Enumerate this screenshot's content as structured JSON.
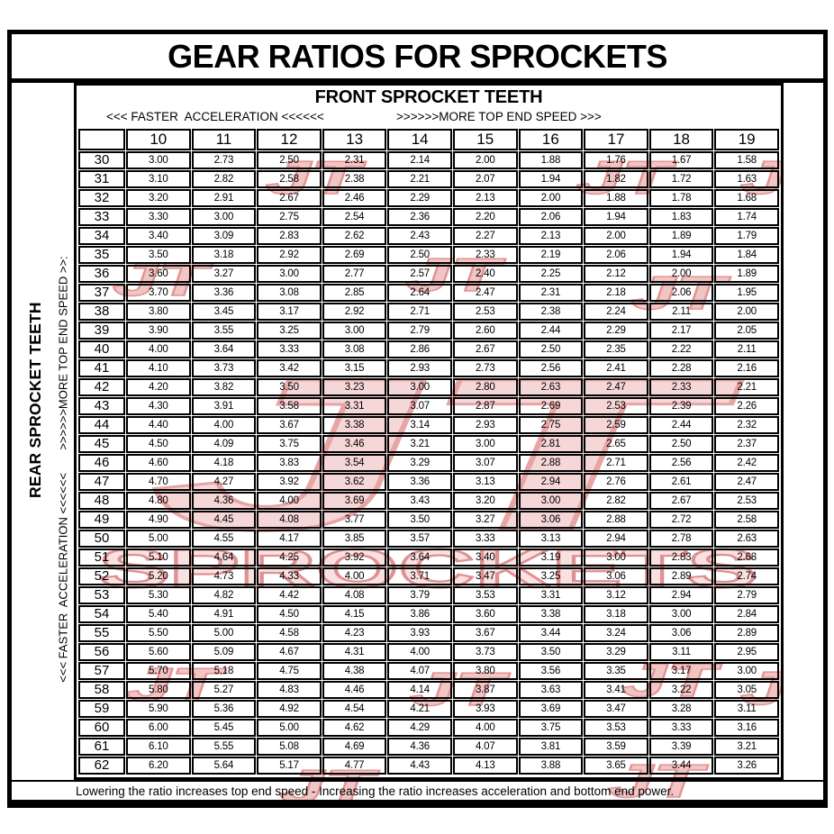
{
  "title": "GEAR RATIOS FOR SPROCKETS",
  "header": {
    "column_group": "FRONT SPROCKET TEETH",
    "acceleration": "<<< FASTER  ACCELERATION <<<<<<",
    "top_speed": ">>>>>>MORE TOP END SPEED >>>"
  },
  "side": {
    "row_group": "REAR SPROCKET TEETH",
    "direction": "<<< FASTER  ACCELERATION <<<<<<       >>>>>>MORE TOP END SPEED >>:"
  },
  "footer": {
    "note": "Lowering the ratio increases top end speed - Increasing the ratio increases acceleration and bottom end power."
  },
  "watermark": {
    "monogram": "JT",
    "wordmark": "SPROCKETS",
    "big_fill": "#f6d3d3",
    "big_stroke": "#e59c9c",
    "word_fill": "#f9dede",
    "word_stroke": "#dd8484",
    "small_fill": "#f1bfbf",
    "small_stroke": "#df8888"
  },
  "chart_data": {
    "type": "table",
    "title": "GEAR RATIOS FOR SPROCKETS",
    "x_label": "FRONT SPROCKET TEETH",
    "y_label": "REAR SPROCKET TEETH",
    "front_teeth": [
      "10",
      "11",
      "12",
      "13",
      "14",
      "15",
      "16",
      "17",
      "18",
      "19"
    ],
    "rows": [
      {
        "rear": "30",
        "ratios": [
          "3.00",
          "2.73",
          "2.50",
          "2.31",
          "2.14",
          "2.00",
          "1.88",
          "1.76",
          "1.67",
          "1.58"
        ]
      },
      {
        "rear": "31",
        "ratios": [
          "3.10",
          "2.82",
          "2.58",
          "2.38",
          "2.21",
          "2.07",
          "1.94",
          "1.82",
          "1.72",
          "1.63"
        ]
      },
      {
        "rear": "32",
        "ratios": [
          "3.20",
          "2.91",
          "2.67",
          "2.46",
          "2.29",
          "2.13",
          "2.00",
          "1.88",
          "1.78",
          "1.68"
        ]
      },
      {
        "rear": "33",
        "ratios": [
          "3.30",
          "3.00",
          "2.75",
          "2.54",
          "2.36",
          "2.20",
          "2.06",
          "1.94",
          "1.83",
          "1.74"
        ]
      },
      {
        "rear": "34",
        "ratios": [
          "3.40",
          "3.09",
          "2.83",
          "2.62",
          "2.43",
          "2.27",
          "2.13",
          "2.00",
          "1.89",
          "1.79"
        ]
      },
      {
        "rear": "35",
        "ratios": [
          "3.50",
          "3.18",
          "2.92",
          "2.69",
          "2.50",
          "2.33",
          "2.19",
          "2.06",
          "1.94",
          "1.84"
        ]
      },
      {
        "rear": "36",
        "ratios": [
          "3.60",
          "3.27",
          "3.00",
          "2.77",
          "2.57",
          "2.40",
          "2.25",
          "2.12",
          "2.00",
          "1.89"
        ]
      },
      {
        "rear": "37",
        "ratios": [
          "3.70",
          "3.36",
          "3.08",
          "2.85",
          "2.64",
          "2.47",
          "2.31",
          "2.18",
          "2.06",
          "1.95"
        ]
      },
      {
        "rear": "38",
        "ratios": [
          "3.80",
          "3.45",
          "3.17",
          "2.92",
          "2.71",
          "2.53",
          "2.38",
          "2.24",
          "2.11",
          "2.00"
        ]
      },
      {
        "rear": "39",
        "ratios": [
          "3.90",
          "3.55",
          "3.25",
          "3.00",
          "2.79",
          "2.60",
          "2.44",
          "2.29",
          "2.17",
          "2.05"
        ]
      },
      {
        "rear": "40",
        "ratios": [
          "4.00",
          "3.64",
          "3.33",
          "3.08",
          "2.86",
          "2.67",
          "2.50",
          "2.35",
          "2.22",
          "2.11"
        ]
      },
      {
        "rear": "41",
        "ratios": [
          "4.10",
          "3.73",
          "3.42",
          "3.15",
          "2.93",
          "2.73",
          "2.56",
          "2.41",
          "2.28",
          "2.16"
        ]
      },
      {
        "rear": "42",
        "ratios": [
          "4.20",
          "3.82",
          "3.50",
          "3.23",
          "3.00",
          "2.80",
          "2.63",
          "2.47",
          "2.33",
          "2.21"
        ]
      },
      {
        "rear": "43",
        "ratios": [
          "4.30",
          "3.91",
          "3.58",
          "3.31",
          "3.07",
          "2.87",
          "2.69",
          "2.53",
          "2.39",
          "2.26"
        ]
      },
      {
        "rear": "44",
        "ratios": [
          "4.40",
          "4.00",
          "3.67",
          "3.38",
          "3.14",
          "2.93",
          "2.75",
          "2.59",
          "2.44",
          "2.32"
        ]
      },
      {
        "rear": "45",
        "ratios": [
          "4.50",
          "4.09",
          "3.75",
          "3.46",
          "3.21",
          "3.00",
          "2.81",
          "2.65",
          "2.50",
          "2.37"
        ]
      },
      {
        "rear": "46",
        "ratios": [
          "4.60",
          "4.18",
          "3.83",
          "3.54",
          "3.29",
          "3.07",
          "2.88",
          "2.71",
          "2.56",
          "2.42"
        ]
      },
      {
        "rear": "47",
        "ratios": [
          "4.70",
          "4.27",
          "3.92",
          "3.62",
          "3.36",
          "3.13",
          "2.94",
          "2.76",
          "2.61",
          "2.47"
        ]
      },
      {
        "rear": "48",
        "ratios": [
          "4.80",
          "4.36",
          "4.00",
          "3.69",
          "3.43",
          "3.20",
          "3.00",
          "2.82",
          "2.67",
          "2.53"
        ]
      },
      {
        "rear": "49",
        "ratios": [
          "4.90",
          "4.45",
          "4.08",
          "3.77",
          "3.50",
          "3.27",
          "3.06",
          "2.88",
          "2.72",
          "2.58"
        ]
      },
      {
        "rear": "50",
        "ratios": [
          "5.00",
          "4.55",
          "4.17",
          "3.85",
          "3.57",
          "3.33",
          "3.13",
          "2.94",
          "2.78",
          "2.63"
        ]
      },
      {
        "rear": "51",
        "ratios": [
          "5.10",
          "4.64",
          "4.25",
          "3.92",
          "3.64",
          "3.40",
          "3.19",
          "3.00",
          "2.83",
          "2.68"
        ]
      },
      {
        "rear": "52",
        "ratios": [
          "5.20",
          "4.73",
          "4.33",
          "4.00",
          "3.71",
          "3.47",
          "3.25",
          "3.06",
          "2.89",
          "2.74"
        ]
      },
      {
        "rear": "53",
        "ratios": [
          "5.30",
          "4.82",
          "4.42",
          "4.08",
          "3.79",
          "3.53",
          "3.31",
          "3.12",
          "2.94",
          "2.79"
        ]
      },
      {
        "rear": "54",
        "ratios": [
          "5.40",
          "4.91",
          "4.50",
          "4.15",
          "3.86",
          "3.60",
          "3.38",
          "3.18",
          "3.00",
          "2.84"
        ]
      },
      {
        "rear": "55",
        "ratios": [
          "5.50",
          "5.00",
          "4.58",
          "4.23",
          "3.93",
          "3.67",
          "3.44",
          "3.24",
          "3.06",
          "2.89"
        ]
      },
      {
        "rear": "56",
        "ratios": [
          "5.60",
          "5.09",
          "4.67",
          "4.31",
          "4.00",
          "3.73",
          "3.50",
          "3.29",
          "3.11",
          "2.95"
        ]
      },
      {
        "rear": "57",
        "ratios": [
          "5.70",
          "5.18",
          "4.75",
          "4.38",
          "4.07",
          "3.80",
          "3.56",
          "3.35",
          "3.17",
          "3.00"
        ]
      },
      {
        "rear": "58",
        "ratios": [
          "5.80",
          "5.27",
          "4.83",
          "4.46",
          "4.14",
          "3.87",
          "3.63",
          "3.41",
          "3.22",
          "3.05"
        ]
      },
      {
        "rear": "59",
        "ratios": [
          "5.90",
          "5.36",
          "4.92",
          "4.54",
          "4.21",
          "3.93",
          "3.69",
          "3.47",
          "3.28",
          "3.11"
        ]
      },
      {
        "rear": "60",
        "ratios": [
          "6.00",
          "5.45",
          "5.00",
          "4.62",
          "4.29",
          "4.00",
          "3.75",
          "3.53",
          "3.33",
          "3.16"
        ]
      },
      {
        "rear": "61",
        "ratios": [
          "6.10",
          "5.55",
          "5.08",
          "4.69",
          "4.36",
          "4.07",
          "3.81",
          "3.59",
          "3.39",
          "3.21"
        ]
      },
      {
        "rear": "62",
        "ratios": [
          "6.20",
          "5.64",
          "5.17",
          "4.77",
          "4.43",
          "4.13",
          "3.88",
          "3.65",
          "3.44",
          "3.26"
        ]
      }
    ]
  }
}
